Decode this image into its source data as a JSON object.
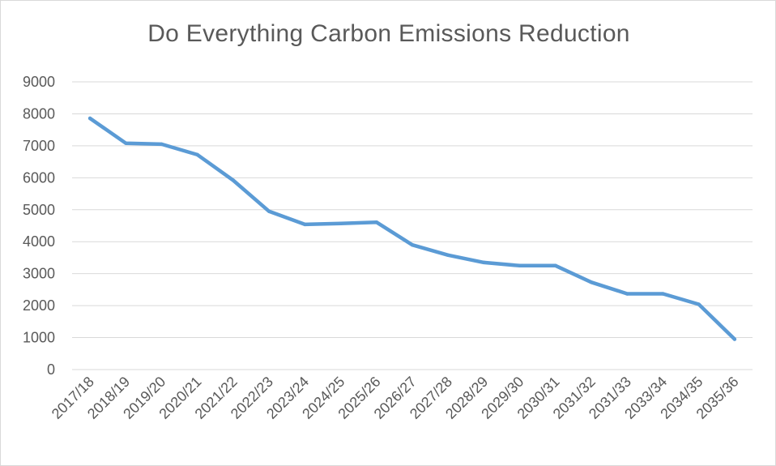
{
  "chart_data": {
    "type": "line",
    "title": "Do Everything Carbon Emissions Reduction",
    "xlabel": "",
    "ylabel": "",
    "categories": [
      "2017/18",
      "2018/19",
      "2019/20",
      "2020/21",
      "2021/22",
      "2022/23",
      "2023/24",
      "2024/25",
      "2025/26",
      "2026/27",
      "2027/28",
      "2028/29",
      "2029/30",
      "2030/31",
      "2031/32",
      "2031/33",
      "2033/34",
      "2034/35",
      "2035/36"
    ],
    "series": [
      {
        "color": "#5b9bd5",
        "values": [
          7860,
          7080,
          7050,
          6720,
          5920,
          4950,
          4540,
          4570,
          4610,
          3900,
          3580,
          3350,
          3250,
          3250,
          2730,
          2370,
          2370,
          2040,
          950
        ]
      }
    ],
    "ylim": [
      0,
      9000
    ],
    "yticks": [
      0,
      1000,
      2000,
      3000,
      4000,
      5000,
      6000,
      7000,
      8000,
      9000
    ],
    "grid": true,
    "legend": "none"
  }
}
